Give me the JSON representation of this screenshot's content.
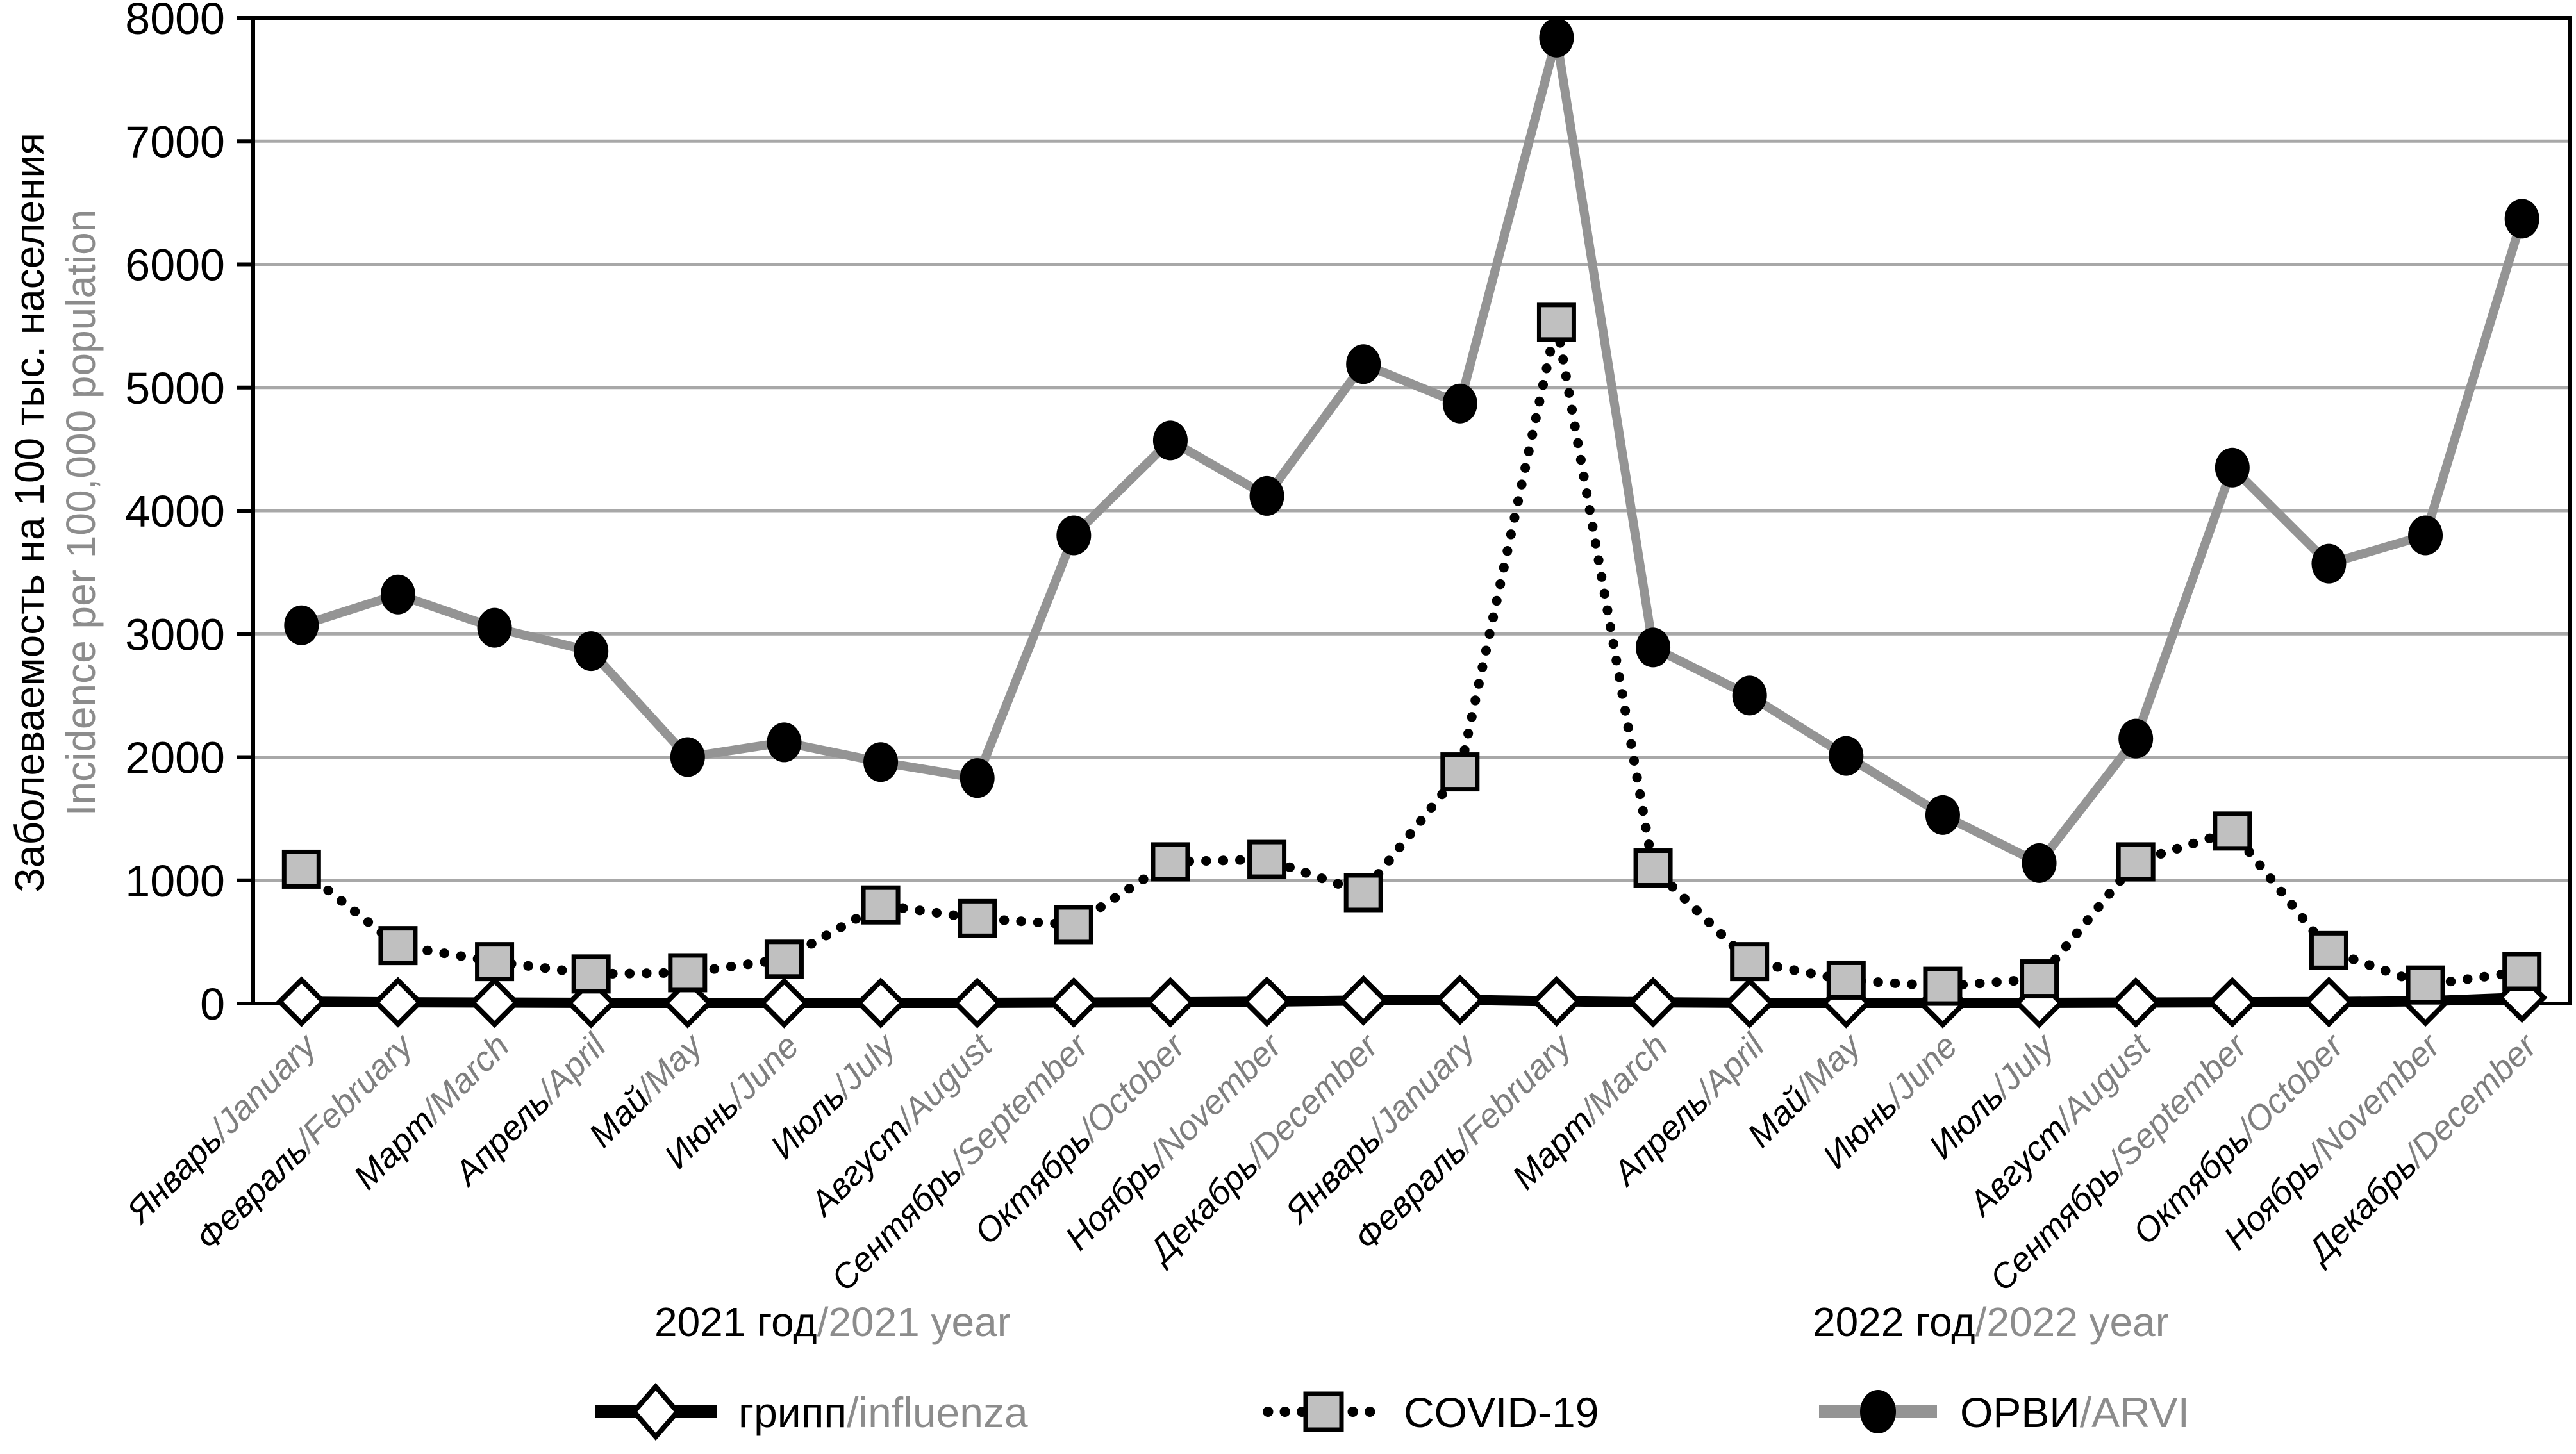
{
  "figure": {
    "kind": "statistical line chart, monochrome print style",
    "background": "#ffffff"
  },
  "y_axis": {
    "title_ru": "Заболеваемость на 100 тыс. населения",
    "title_en": "Incidence per 100,000 population",
    "min": 0,
    "max": 8000,
    "tick_step": 1000,
    "tick_labels": [
      "0",
      "1000",
      "2000",
      "3000",
      "4000",
      "5000",
      "6000",
      "7000",
      "8000"
    ]
  },
  "x_axis": {
    "months": [
      {
        "ru": "Январь",
        "en": "/January"
      },
      {
        "ru": "Февраль",
        "en": "/February"
      },
      {
        "ru": "Март",
        "en": "/March"
      },
      {
        "ru": "Апрель",
        "en": "/April"
      },
      {
        "ru": "Май",
        "en": "/May"
      },
      {
        "ru": "Июнь",
        "en": "/June"
      },
      {
        "ru": "Июль",
        "en": "/July"
      },
      {
        "ru": "Август",
        "en": "/August"
      },
      {
        "ru": "Сентябрь",
        "en": "/September"
      },
      {
        "ru": "Октябрь",
        "en": "/October"
      },
      {
        "ru": "Ноябрь",
        "en": "/November"
      },
      {
        "ru": "Декабрь",
        "en": "/December"
      },
      {
        "ru": "Январь",
        "en": "/January"
      },
      {
        "ru": "Февраль",
        "en": "/February"
      },
      {
        "ru": "Март",
        "en": "/March"
      },
      {
        "ru": "Апрель",
        "en": "/April"
      },
      {
        "ru": "Май",
        "en": "/May"
      },
      {
        "ru": "Июнь",
        "en": "/June"
      },
      {
        "ru": "Июль",
        "en": "/July"
      },
      {
        "ru": "Август",
        "en": "/August"
      },
      {
        "ru": "Сентябрь",
        "en": "/September"
      },
      {
        "ru": "Октябрь",
        "en": "/October"
      },
      {
        "ru": "Ноябрь",
        "en": "/November"
      },
      {
        "ru": "Декабрь",
        "en": "/December"
      }
    ],
    "year_groups": [
      {
        "label_ru": "2021 год",
        "label_en": "/2021 year"
      },
      {
        "label_ru": "2022 год",
        "label_en": "/2022 year"
      }
    ]
  },
  "legend": {
    "items": [
      {
        "id": "influenza",
        "label_ru": "грипп",
        "label_en": "/influenza",
        "marker": "open-diamond-on-solid-black-line"
      },
      {
        "id": "covid19",
        "label": "COVID-19",
        "marker": "gray-square-on-dotted-black-line"
      },
      {
        "id": "arvi",
        "label_ru": "ОРВИ",
        "label_en": "/ARVI",
        "marker": "black-circle-on-solid-gray-line"
      }
    ]
  },
  "colors": {
    "grid": "#a8a8a8",
    "axis": "#000000",
    "secondary_text": "#8c8c8c",
    "arvi_line": "#949494",
    "covid_line": "#000000",
    "influenza_line": "#000000",
    "covid_marker_fill": "#c0c0c0",
    "influenza_marker_fill": "#ffffff",
    "marker_black": "#000000"
  },
  "chart_data": {
    "type": "line",
    "title": "",
    "xlabel": "",
    "ylabel": "Заболеваемость на 100 тыс. населения / Incidence per 100,000 population",
    "ylim": [
      0,
      8000
    ],
    "ytick_step": 1000,
    "grid": "horizontal gridlines every 1000",
    "legend_position": "bottom",
    "categories": [
      "Январь/January 2021",
      "Февраль/February 2021",
      "Март/March 2021",
      "Апрель/April 2021",
      "Май/May 2021",
      "Июнь/June 2021",
      "Июль/July 2021",
      "Август/August 2021",
      "Сентябрь/September 2021",
      "Октябрь/October 2021",
      "Ноябрь/November 2021",
      "Декабрь/December 2021",
      "Январь/January 2022",
      "Февраль/February 2022",
      "Март/March 2022",
      "Апрель/April 2022",
      "Май/May 2022",
      "Июнь/June 2022",
      "Июль/July 2022",
      "Август/August 2022",
      "Сентябрь/September 2022",
      "Октябрь/October 2022",
      "Ноябрь/November 2022",
      "Декабрь/December 2022"
    ],
    "series": [
      {
        "name": "грипп/influenza",
        "line": "solid black thick",
        "marker": "open diamond",
        "values": [
          15,
          10,
          8,
          5,
          5,
          5,
          5,
          5,
          8,
          10,
          15,
          25,
          30,
          18,
          10,
          5,
          5,
          5,
          5,
          8,
          10,
          12,
          18,
          48
        ]
      },
      {
        "name": "COVID-19",
        "line": "dotted black",
        "marker": "gray square",
        "values": [
          1090,
          470,
          340,
          240,
          250,
          360,
          800,
          690,
          640,
          1150,
          1170,
          900,
          1880,
          5530,
          1100,
          340,
          190,
          140,
          200,
          1150,
          1400,
          430,
          150,
          260
        ]
      },
      {
        "name": "ОРВИ/ARVI",
        "line": "solid gray thick",
        "marker": "black circle",
        "values": [
          3070,
          3320,
          3050,
          2860,
          2000,
          2120,
          1960,
          1830,
          3800,
          4570,
          4120,
          5190,
          4870,
          7840,
          2890,
          2500,
          2010,
          1530,
          1140,
          2150,
          4350,
          3570,
          3800,
          6370
        ]
      }
    ]
  }
}
